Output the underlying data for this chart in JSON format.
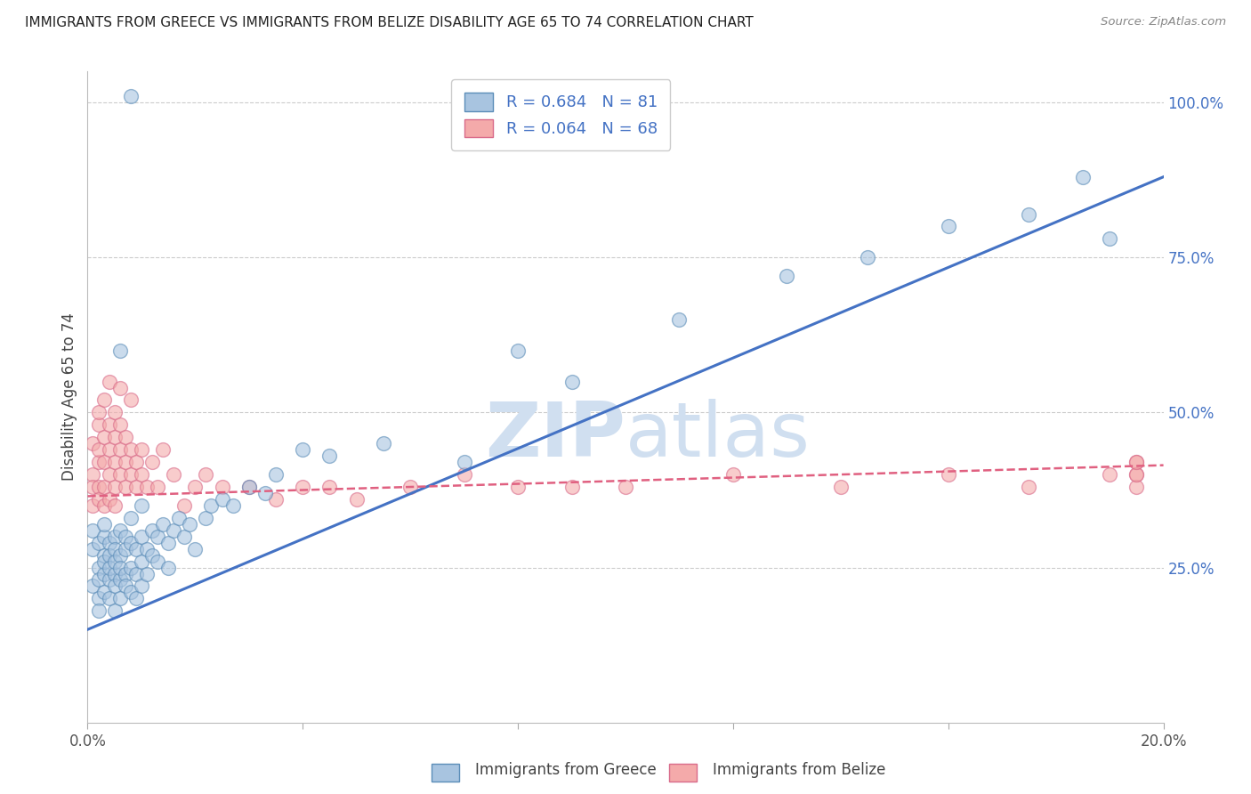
{
  "title": "IMMIGRANTS FROM GREECE VS IMMIGRANTS FROM BELIZE DISABILITY AGE 65 TO 74 CORRELATION CHART",
  "source": "Source: ZipAtlas.com",
  "ylabel": "Disability Age 65 to 74",
  "greece_color_face": "#A8C4E0",
  "greece_color_edge": "#5B8DB8",
  "belize_color_face": "#F4AAAA",
  "belize_color_edge": "#D96B8A",
  "blue_line_color": "#4472C4",
  "pink_line_color": "#E06080",
  "watermark_color": "#D0DFF0",
  "background_color": "#FFFFFF",
  "xlim": [
    0.0,
    0.2
  ],
  "ylim": [
    0.0,
    1.05
  ],
  "greece_line_x0": 0.0,
  "greece_line_y0": 0.15,
  "greece_line_x1": 0.2,
  "greece_line_y1": 0.88,
  "belize_line_x0": 0.0,
  "belize_line_y0": 0.365,
  "belize_line_x1": 0.2,
  "belize_line_y1": 0.415,
  "greece_scatter_x": [
    0.001,
    0.001,
    0.001,
    0.002,
    0.002,
    0.002,
    0.002,
    0.002,
    0.003,
    0.003,
    0.003,
    0.003,
    0.003,
    0.003,
    0.004,
    0.004,
    0.004,
    0.004,
    0.004,
    0.005,
    0.005,
    0.005,
    0.005,
    0.005,
    0.005,
    0.006,
    0.006,
    0.006,
    0.006,
    0.006,
    0.007,
    0.007,
    0.007,
    0.007,
    0.008,
    0.008,
    0.008,
    0.008,
    0.009,
    0.009,
    0.009,
    0.01,
    0.01,
    0.01,
    0.01,
    0.011,
    0.011,
    0.012,
    0.012,
    0.013,
    0.013,
    0.014,
    0.015,
    0.015,
    0.016,
    0.017,
    0.018,
    0.019,
    0.02,
    0.022,
    0.023,
    0.025,
    0.027,
    0.03,
    0.033,
    0.035,
    0.04,
    0.045,
    0.055,
    0.07,
    0.08,
    0.09,
    0.11,
    0.13,
    0.145,
    0.16,
    0.175,
    0.185,
    0.19,
    0.006,
    0.008
  ],
  "greece_scatter_y": [
    0.28,
    0.22,
    0.31,
    0.25,
    0.2,
    0.29,
    0.23,
    0.18,
    0.3,
    0.24,
    0.27,
    0.21,
    0.26,
    0.32,
    0.29,
    0.23,
    0.27,
    0.2,
    0.25,
    0.3,
    0.24,
    0.28,
    0.22,
    0.26,
    0.18,
    0.31,
    0.27,
    0.23,
    0.2,
    0.25,
    0.3,
    0.24,
    0.28,
    0.22,
    0.29,
    0.25,
    0.21,
    0.33,
    0.28,
    0.24,
    0.2,
    0.3,
    0.26,
    0.22,
    0.35,
    0.28,
    0.24,
    0.31,
    0.27,
    0.3,
    0.26,
    0.32,
    0.29,
    0.25,
    0.31,
    0.33,
    0.3,
    0.32,
    0.28,
    0.33,
    0.35,
    0.36,
    0.35,
    0.38,
    0.37,
    0.4,
    0.44,
    0.43,
    0.45,
    0.42,
    0.6,
    0.55,
    0.65,
    0.72,
    0.75,
    0.8,
    0.82,
    0.88,
    0.78,
    0.6,
    1.01
  ],
  "belize_scatter_x": [
    0.001,
    0.001,
    0.001,
    0.001,
    0.002,
    0.002,
    0.002,
    0.002,
    0.002,
    0.002,
    0.003,
    0.003,
    0.003,
    0.003,
    0.003,
    0.004,
    0.004,
    0.004,
    0.004,
    0.004,
    0.005,
    0.005,
    0.005,
    0.005,
    0.005,
    0.006,
    0.006,
    0.006,
    0.006,
    0.007,
    0.007,
    0.007,
    0.008,
    0.008,
    0.008,
    0.009,
    0.009,
    0.01,
    0.01,
    0.011,
    0.012,
    0.013,
    0.014,
    0.016,
    0.018,
    0.02,
    0.022,
    0.025,
    0.03,
    0.035,
    0.04,
    0.045,
    0.05,
    0.06,
    0.07,
    0.08,
    0.09,
    0.1,
    0.12,
    0.14,
    0.16,
    0.175,
    0.19,
    0.195,
    0.195,
    0.195,
    0.195,
    0.195
  ],
  "belize_scatter_y": [
    0.4,
    0.38,
    0.45,
    0.35,
    0.42,
    0.38,
    0.36,
    0.48,
    0.44,
    0.5,
    0.38,
    0.42,
    0.46,
    0.35,
    0.52,
    0.4,
    0.44,
    0.48,
    0.36,
    0.55,
    0.38,
    0.42,
    0.46,
    0.5,
    0.35,
    0.4,
    0.44,
    0.48,
    0.54,
    0.38,
    0.42,
    0.46,
    0.4,
    0.44,
    0.52,
    0.38,
    0.42,
    0.4,
    0.44,
    0.38,
    0.42,
    0.38,
    0.44,
    0.4,
    0.35,
    0.38,
    0.4,
    0.38,
    0.38,
    0.36,
    0.38,
    0.38,
    0.36,
    0.38,
    0.4,
    0.38,
    0.38,
    0.38,
    0.4,
    0.38,
    0.4,
    0.38,
    0.4,
    0.4,
    0.42,
    0.38,
    0.4,
    0.42
  ],
  "legend_greece": "R = 0.684   N = 81",
  "legend_belize": "R = 0.064   N = 68",
  "legend_label_greece": "Immigrants from Greece",
  "legend_label_belize": "Immigrants from Belize"
}
